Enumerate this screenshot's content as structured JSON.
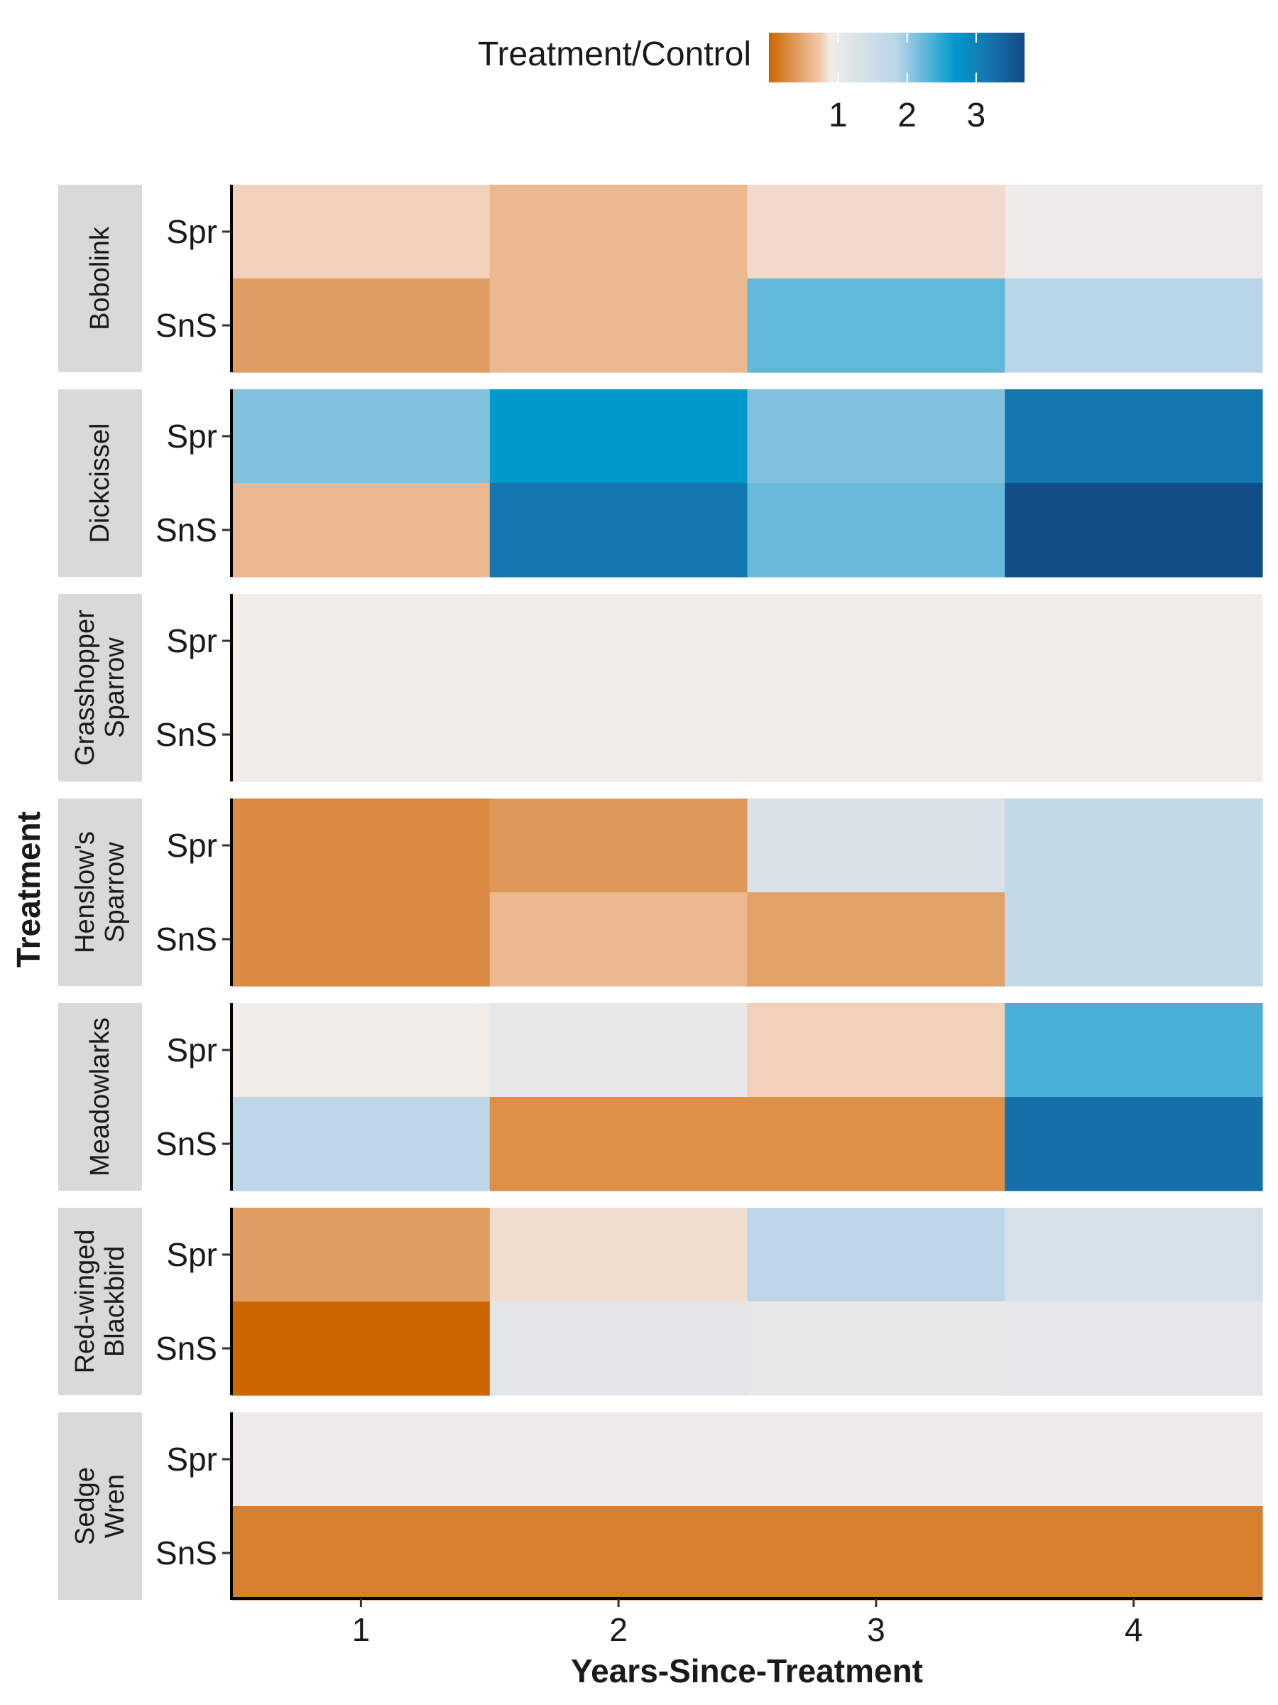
{
  "chart_data": {
    "type": "heatmap",
    "title": "",
    "xlabel": "Years-Since-Treatment",
    "ylabel": "Treatment",
    "x_categories": [
      "1",
      "2",
      "3",
      "4"
    ],
    "row_categories": [
      "Spr",
      "SnS"
    ],
    "legend": {
      "title": "Treatment/Control",
      "placement": "top",
      "ticks": [
        "1",
        "2",
        "3"
      ],
      "tick_values": [
        1,
        2,
        3
      ],
      "range": [
        0,
        3.7
      ],
      "colors": {
        "low": "#cc6600",
        "mid": "#f2ece8",
        "high_mid": "#0099cc",
        "high": "#124a85"
      }
    },
    "facets": [
      {
        "label": "Bobolink",
        "rows": [
          {
            "treatment": "Spr",
            "values": [
              0.8,
              0.62,
              0.88,
              1.05
            ]
          },
          {
            "treatment": "SnS",
            "values": [
              0.42,
              0.62,
              2.1,
              1.55
            ]
          }
        ]
      },
      {
        "label": "Dickcissel",
        "rows": [
          {
            "treatment": "Spr",
            "values": [
              1.9,
              2.7,
              1.9,
              3.05
            ]
          },
          {
            "treatment": "SnS",
            "values": [
              0.62,
              3.05,
              2.05,
              3.65
            ]
          }
        ]
      },
      {
        "label": "Grasshopper Sparrow",
        "rows": [
          {
            "treatment": "Spr",
            "values": [
              1.0,
              1.0,
              1.0,
              1.0
            ]
          },
          {
            "treatment": "SnS",
            "values": [
              1.0,
              1.0,
              1.0,
              1.0
            ]
          }
        ]
      },
      {
        "label": "Henslow's Sparrow",
        "rows": [
          {
            "treatment": "Spr",
            "values": [
              0.28,
              0.38,
              1.25,
              1.45
            ]
          },
          {
            "treatment": "SnS",
            "values": [
              0.28,
              0.62,
              0.45,
              1.45
            ]
          }
        ]
      },
      {
        "label": "Meadowlarks",
        "rows": [
          {
            "treatment": "Spr",
            "values": [
              1.0,
              1.1,
              0.8,
              2.25
            ]
          },
          {
            "treatment": "SnS",
            "values": [
              1.5,
              0.32,
              0.32,
              3.15
            ]
          }
        ]
      },
      {
        "label": "Red-winged Blackbird",
        "rows": [
          {
            "treatment": "Spr",
            "values": [
              0.42,
              0.9,
              1.5,
              1.28
            ]
          },
          {
            "treatment": "SnS",
            "values": [
              0.0,
              1.15,
              1.1,
              1.12
            ]
          }
        ]
      },
      {
        "label": "Sedge Wren",
        "rows": [
          {
            "treatment": "Spr",
            "values": [
              1.06,
              1.06,
              1.06,
              1.06
            ]
          },
          {
            "treatment": "SnS",
            "values": [
              0.2,
              0.2,
              0.2,
              0.2
            ]
          }
        ]
      }
    ]
  }
}
